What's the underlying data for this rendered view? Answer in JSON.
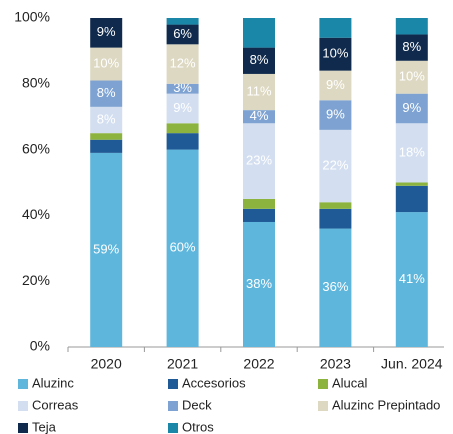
{
  "chart_data": {
    "type": "stacked_bar",
    "categories": [
      "2020",
      "2021",
      "2022",
      "2023",
      "Jun. 2024"
    ],
    "series": [
      {
        "name": "Aluzinc",
        "color": "#5fb6dc",
        "values": [
          59,
          60,
          38,
          36,
          41
        ],
        "value_labels": [
          "59%",
          "60%",
          "38%",
          "36%",
          "41%"
        ]
      },
      {
        "name": "Accesorios",
        "color": "#1f5a96",
        "values": [
          4,
          5,
          4,
          6,
          8
        ],
        "value_labels": [
          null,
          null,
          null,
          null,
          null
        ]
      },
      {
        "name": "Alucal",
        "color": "#8db33f",
        "values": [
          2,
          3,
          3,
          2,
          1
        ],
        "value_labels": [
          null,
          null,
          null,
          null,
          null
        ]
      },
      {
        "name": "Correas",
        "color": "#d3dff0",
        "values": [
          8,
          9,
          23,
          22,
          18
        ],
        "value_labels": [
          "8%",
          "9%",
          "23%",
          "22%",
          "18%"
        ]
      },
      {
        "name": "Deck",
        "color": "#7ea3d2",
        "values": [
          8,
          3,
          4,
          9,
          9
        ],
        "value_labels": [
          "8%",
          "3%",
          "4%",
          "9%",
          "9%"
        ]
      },
      {
        "name": "Aluzinc Prepintado",
        "color": "#ddd8c2",
        "values": [
          10,
          12,
          11,
          9,
          10
        ],
        "value_labels": [
          "10%",
          "12%",
          "11%",
          "9%",
          "10%"
        ]
      },
      {
        "name": "Teja",
        "color": "#0f2a4c",
        "values": [
          9,
          6,
          8,
          10,
          8
        ],
        "value_labels": [
          "9%",
          "6%",
          "8%",
          "10%",
          "8%"
        ]
      },
      {
        "name": "Otros",
        "color": "#1a87a8",
        "values": [
          0,
          2,
          9,
          6,
          5
        ],
        "value_labels": [
          null,
          null,
          null,
          null,
          null
        ]
      }
    ],
    "ylim": [
      0,
      100
    ],
    "yticks": [
      {
        "value": 0,
        "label": "0%"
      },
      {
        "value": 20,
        "label": "20%"
      },
      {
        "value": 40,
        "label": "40%"
      },
      {
        "value": 60,
        "label": "60%"
      },
      {
        "value": 80,
        "label": "80%"
      },
      {
        "value": 100,
        "label": "100%"
      }
    ],
    "grid": false,
    "legend": "bottom"
  }
}
